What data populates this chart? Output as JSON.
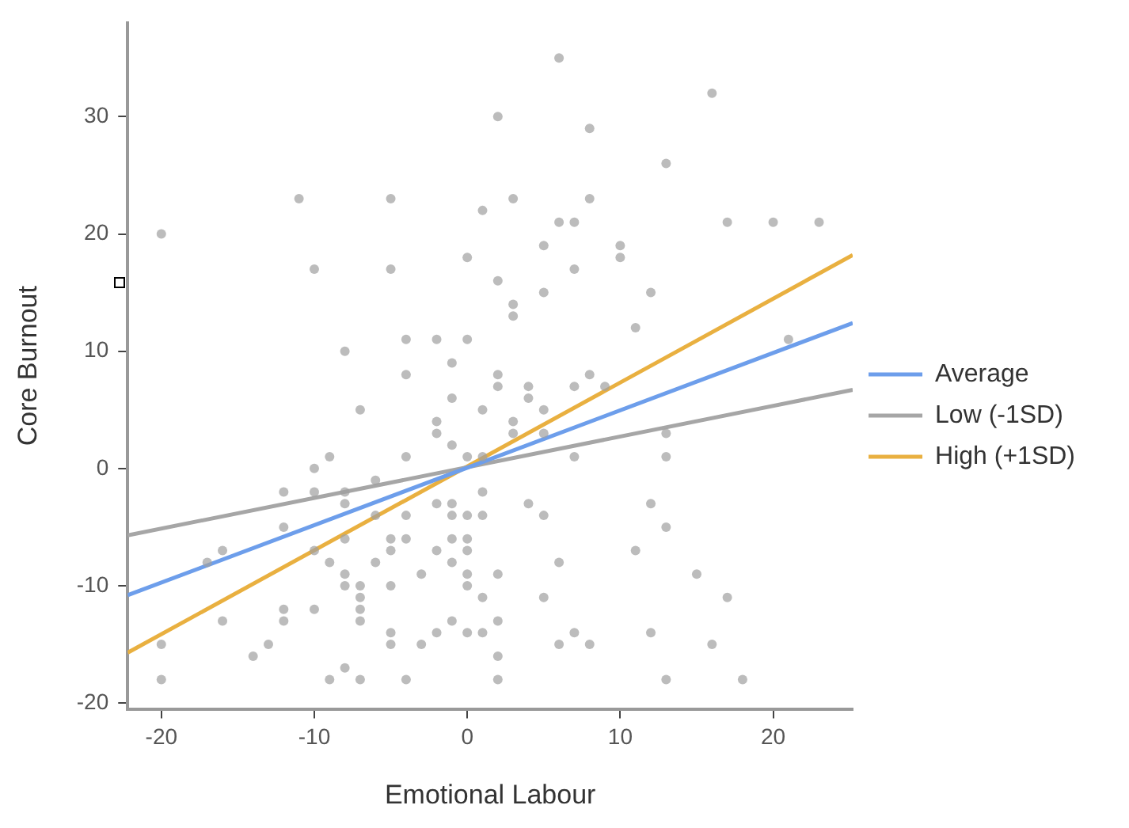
{
  "chart_data": {
    "type": "scatter",
    "xlabel": "Emotional Labour",
    "ylabel": "Core Burnout",
    "xlim": [
      -22.2,
      25.2
    ],
    "ylim": [
      -20.5,
      38
    ],
    "xticks": [
      -20,
      -10,
      0,
      10,
      20
    ],
    "yticks": [
      -20,
      -10,
      0,
      10,
      20,
      30
    ],
    "grid": false,
    "legend": "right",
    "series": [
      {
        "color": "#a0a0a0",
        "marker": "circle",
        "x": [
          -20,
          -11,
          -5,
          1,
          -10,
          -5,
          0,
          -8,
          -4,
          -2,
          0,
          -1,
          -4,
          6,
          16,
          2,
          8,
          13,
          3,
          8,
          6,
          7,
          17,
          20,
          23,
          5,
          10,
          10,
          7,
          2,
          5,
          12,
          3,
          3,
          11,
          21,
          2,
          8,
          2,
          4,
          7,
          9,
          4,
          5,
          1,
          3,
          3,
          5,
          13,
          0,
          1,
          7,
          13,
          1,
          4,
          5,
          12,
          13,
          0,
          1,
          0,
          0,
          11,
          6,
          0,
          2,
          15,
          0,
          1,
          5,
          17,
          2,
          0,
          1,
          7,
          12,
          6,
          8,
          16,
          2,
          2,
          13,
          18,
          -1,
          -7,
          -2,
          -2,
          -1,
          -10,
          -9,
          -4,
          -6,
          -12,
          -10,
          -8,
          -8,
          -2,
          -1,
          -4,
          -1,
          -6,
          -12,
          -5,
          -4,
          -1,
          -8,
          -10,
          -5,
          -2,
          -17,
          -16,
          -9,
          -6,
          -1,
          -8,
          -3,
          -8,
          -7,
          -5,
          -7,
          -12,
          -10,
          -7,
          -16,
          -12,
          -7,
          -1,
          -5,
          -2,
          -20,
          -13,
          -5,
          -3,
          -14,
          -8,
          -20,
          -9,
          -7,
          -4
        ],
        "values": [
          20,
          23,
          23,
          22,
          17,
          17,
          18,
          10,
          11,
          11,
          11,
          9,
          8,
          35,
          32,
          30,
          29,
          26,
          23,
          23,
          21,
          21,
          21,
          21,
          21,
          19,
          19,
          18,
          17,
          16,
          15,
          15,
          14,
          13,
          12,
          11,
          8,
          8,
          7,
          7,
          7,
          7,
          6,
          5,
          5,
          4,
          3,
          3,
          3,
          1,
          1,
          1,
          1,
          -2,
          -3,
          -4,
          -3,
          -5,
          -4,
          -4,
          -6,
          -7,
          -7,
          -8,
          -9,
          -9,
          -9,
          -10,
          -11,
          -11,
          -11,
          -13,
          -14,
          -14,
          -14,
          -14,
          -15,
          -15,
          -15,
          -16,
          -18,
          -18,
          -18,
          6,
          5,
          4,
          3,
          2,
          0,
          1,
          1,
          -1,
          -2,
          -2,
          -2,
          -3,
          -3,
          -3,
          -4,
          -4,
          -4,
          -5,
          -6,
          -6,
          -6,
          -6,
          -7,
          -7,
          -7,
          -8,
          -7,
          -8,
          -8,
          -8,
          -9,
          -9,
          -10,
          -10,
          -10,
          -11,
          -12,
          -12,
          -12,
          -13,
          -13,
          -13,
          -13,
          -14,
          -14,
          -15,
          -15,
          -15,
          -15,
          -16,
          -17,
          -18,
          -18,
          -18,
          -18
        ]
      },
      {
        "type": "line",
        "name": "Average",
        "color": "#6d9eeb",
        "marker": "none",
        "x": [
          -22.2,
          25.2
        ],
        "values": [
          -10.8,
          12.4
        ]
      },
      {
        "type": "line",
        "name": "Low (-1SD)",
        "color": "#a6a6a6",
        "marker": "none",
        "x": [
          -22.2,
          25.2
        ],
        "values": [
          -5.7,
          6.7
        ]
      },
      {
        "type": "line",
        "name": "High (+1SD)",
        "color": "#e9b040",
        "marker": "none",
        "x": [
          -22.2,
          25.2
        ],
        "values": [
          -15.7,
          18.2
        ]
      }
    ]
  }
}
